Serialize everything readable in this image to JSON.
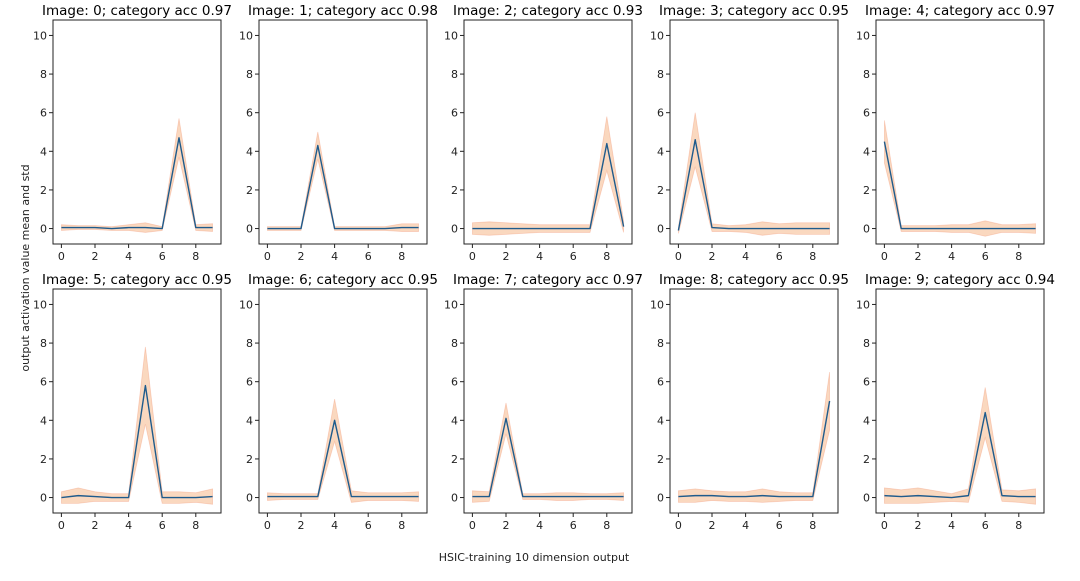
{
  "figure": {
    "xlabel": "HSIC-training 10 dimension output",
    "ylabel": "output activation value mean and std",
    "colors": {
      "mean_line": "#1f5b8c",
      "std_band": "#f4a972",
      "std_band_edge": "#f08c6a"
    }
  },
  "chart_data": [
    {
      "type": "line",
      "title": "Image: 0; category acc 0.97",
      "x": [
        0,
        1,
        2,
        3,
        4,
        5,
        6,
        7,
        8,
        9
      ],
      "series": [
        {
          "name": "mean",
          "values": [
            0.05,
            0.05,
            0.05,
            0.0,
            0.05,
            0.05,
            0.0,
            4.7,
            0.05,
            0.05
          ]
        },
        {
          "name": "std",
          "values": [
            0.15,
            0.1,
            0.1,
            0.1,
            0.15,
            0.25,
            0.1,
            1.0,
            0.15,
            0.2
          ]
        }
      ],
      "xticks": [
        0,
        2,
        4,
        6,
        8
      ],
      "yticks": [
        0,
        2,
        4,
        6,
        8,
        10
      ],
      "xlim": [
        -0.5,
        9.5
      ],
      "ylim": [
        -0.8,
        10.8
      ]
    },
    {
      "type": "line",
      "title": "Image: 1; category acc 0.98",
      "x": [
        0,
        1,
        2,
        3,
        4,
        5,
        6,
        7,
        8,
        9
      ],
      "series": [
        {
          "name": "mean",
          "values": [
            0.0,
            0.0,
            0.0,
            4.3,
            0.0,
            0.0,
            0.0,
            0.0,
            0.05,
            0.05
          ]
        },
        {
          "name": "std",
          "values": [
            0.1,
            0.1,
            0.1,
            0.7,
            0.1,
            0.1,
            0.1,
            0.1,
            0.2,
            0.2
          ]
        }
      ],
      "xticks": [
        0,
        2,
        4,
        6,
        8
      ],
      "yticks": [
        0,
        2,
        4,
        6,
        8,
        10
      ],
      "xlim": [
        -0.5,
        9.5
      ],
      "ylim": [
        -0.8,
        10.8
      ]
    },
    {
      "type": "line",
      "title": "Image: 2; category acc 0.93",
      "x": [
        0,
        1,
        2,
        3,
        4,
        5,
        6,
        7,
        8,
        9
      ],
      "series": [
        {
          "name": "mean",
          "values": [
            0.0,
            0.0,
            0.0,
            0.0,
            0.0,
            0.0,
            0.0,
            0.0,
            4.4,
            0.1
          ]
        },
        {
          "name": "std",
          "values": [
            0.3,
            0.35,
            0.3,
            0.25,
            0.2,
            0.2,
            0.2,
            0.2,
            1.4,
            0.3
          ]
        }
      ],
      "xticks": [
        0,
        2,
        4,
        6,
        8
      ],
      "yticks": [
        0,
        2,
        4,
        6,
        8,
        10
      ],
      "xlim": [
        -0.5,
        9.5
      ],
      "ylim": [
        -0.8,
        10.8
      ]
    },
    {
      "type": "line",
      "title": "Image: 3; category acc 0.95",
      "x": [
        0,
        1,
        2,
        3,
        4,
        5,
        6,
        7,
        8,
        9
      ],
      "series": [
        {
          "name": "mean",
          "values": [
            -0.1,
            4.6,
            0.05,
            0.0,
            0.0,
            0.0,
            0.0,
            0.0,
            0.0,
            0.0
          ]
        },
        {
          "name": "std",
          "values": [
            0.15,
            1.4,
            0.2,
            0.15,
            0.2,
            0.35,
            0.25,
            0.3,
            0.3,
            0.3
          ]
        }
      ],
      "xticks": [
        0,
        2,
        4,
        6,
        8
      ],
      "yticks": [
        0,
        2,
        4,
        6,
        8,
        10
      ],
      "xlim": [
        -0.5,
        9.5
      ],
      "ylim": [
        -0.8,
        10.8
      ]
    },
    {
      "type": "line",
      "title": "Image: 4; category acc 0.97",
      "x": [
        0,
        1,
        2,
        3,
        4,
        5,
        6,
        7,
        8,
        9
      ],
      "series": [
        {
          "name": "mean",
          "values": [
            4.5,
            0.0,
            0.0,
            0.0,
            0.0,
            0.0,
            0.0,
            0.0,
            0.0,
            0.0
          ]
        },
        {
          "name": "std",
          "values": [
            1.1,
            0.15,
            0.15,
            0.15,
            0.2,
            0.2,
            0.4,
            0.2,
            0.2,
            0.25
          ]
        }
      ],
      "xticks": [
        0,
        2,
        4,
        6,
        8
      ],
      "yticks": [
        0,
        2,
        4,
        6,
        8,
        10
      ],
      "xlim": [
        -0.5,
        9.5
      ],
      "ylim": [
        -0.8,
        10.8
      ]
    },
    {
      "type": "line",
      "title": "Image: 5; category acc 0.95",
      "x": [
        0,
        1,
        2,
        3,
        4,
        5,
        6,
        7,
        8,
        9
      ],
      "series": [
        {
          "name": "mean",
          "values": [
            0.0,
            0.1,
            0.05,
            0.0,
            0.0,
            5.8,
            0.0,
            0.0,
            0.0,
            0.05
          ]
        },
        {
          "name": "std",
          "values": [
            0.3,
            0.4,
            0.25,
            0.2,
            0.2,
            2.0,
            0.3,
            0.3,
            0.25,
            0.4
          ]
        }
      ],
      "xticks": [
        0,
        2,
        4,
        6,
        8
      ],
      "yticks": [
        0,
        2,
        4,
        6,
        8,
        10
      ],
      "xlim": [
        -0.5,
        9.5
      ],
      "ylim": [
        -0.8,
        10.8
      ]
    },
    {
      "type": "line",
      "title": "Image: 6; category acc 0.95",
      "x": [
        0,
        1,
        2,
        3,
        4,
        5,
        6,
        7,
        8,
        9
      ],
      "series": [
        {
          "name": "mean",
          "values": [
            0.05,
            0.05,
            0.05,
            0.05,
            4.0,
            0.05,
            0.05,
            0.05,
            0.05,
            0.05
          ]
        },
        {
          "name": "std",
          "values": [
            0.2,
            0.15,
            0.15,
            0.15,
            1.1,
            0.3,
            0.2,
            0.2,
            0.2,
            0.25
          ]
        }
      ],
      "xticks": [
        0,
        2,
        4,
        6,
        8
      ],
      "yticks": [
        0,
        2,
        4,
        6,
        8,
        10
      ],
      "xlim": [
        -0.5,
        9.5
      ],
      "ylim": [
        -0.8,
        10.8
      ]
    },
    {
      "type": "line",
      "title": "Image: 7; category acc 0.97",
      "x": [
        0,
        1,
        2,
        3,
        4,
        5,
        6,
        7,
        8,
        9
      ],
      "series": [
        {
          "name": "mean",
          "values": [
            0.05,
            0.05,
            4.1,
            0.05,
            0.05,
            0.05,
            0.05,
            0.05,
            0.05,
            0.05
          ]
        },
        {
          "name": "std",
          "values": [
            0.3,
            0.25,
            0.8,
            0.15,
            0.15,
            0.2,
            0.2,
            0.15,
            0.15,
            0.2
          ]
        }
      ],
      "xticks": [
        0,
        2,
        4,
        6,
        8
      ],
      "yticks": [
        0,
        2,
        4,
        6,
        8,
        10
      ],
      "xlim": [
        -0.5,
        9.5
      ],
      "ylim": [
        -0.8,
        10.8
      ]
    },
    {
      "type": "line",
      "title": "Image: 8; category acc 0.95",
      "x": [
        0,
        1,
        2,
        3,
        4,
        5,
        6,
        7,
        8,
        9
      ],
      "series": [
        {
          "name": "mean",
          "values": [
            0.05,
            0.1,
            0.1,
            0.05,
            0.05,
            0.1,
            0.05,
            0.05,
            0.05,
            5.0
          ]
        },
        {
          "name": "std",
          "values": [
            0.3,
            0.35,
            0.25,
            0.25,
            0.25,
            0.35,
            0.25,
            0.2,
            0.2,
            1.5
          ]
        }
      ],
      "xticks": [
        0,
        2,
        4,
        6,
        8
      ],
      "yticks": [
        0,
        2,
        4,
        6,
        8,
        10
      ],
      "xlim": [
        -0.5,
        9.5
      ],
      "ylim": [
        -0.8,
        10.8
      ]
    },
    {
      "type": "line",
      "title": "Image: 9; category acc 0.94",
      "x": [
        0,
        1,
        2,
        3,
        4,
        5,
        6,
        7,
        8,
        9
      ],
      "series": [
        {
          "name": "mean",
          "values": [
            0.1,
            0.05,
            0.1,
            0.05,
            0.0,
            0.1,
            4.4,
            0.1,
            0.05,
            0.05
          ]
        },
        {
          "name": "std",
          "values": [
            0.4,
            0.35,
            0.4,
            0.3,
            0.2,
            0.35,
            1.3,
            0.3,
            0.3,
            0.4
          ]
        }
      ],
      "xticks": [
        0,
        2,
        4,
        6,
        8
      ],
      "yticks": [
        0,
        2,
        4,
        6,
        8,
        10
      ],
      "xlim": [
        -0.5,
        9.5
      ],
      "ylim": [
        -0.8,
        10.8
      ]
    }
  ]
}
